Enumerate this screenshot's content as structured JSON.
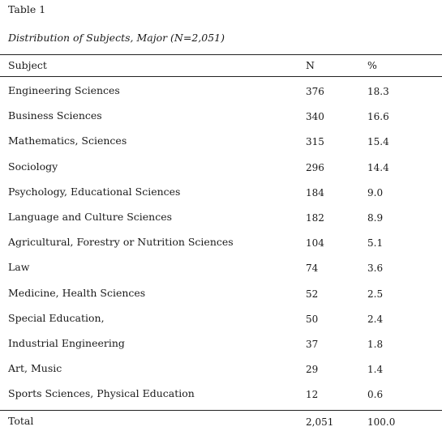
{
  "table": {
    "number": "Table 1",
    "caption": "Distribution of Subjects, Major  (N=2,051)",
    "headers": {
      "subject": "Subject",
      "n": "N",
      "percent": "%"
    },
    "rows": [
      {
        "subject": "Engineering Sciences",
        "n": "376",
        "percent": "18.3"
      },
      {
        "subject": "Business Sciences",
        "n": "340",
        "percent": "16.6"
      },
      {
        "subject": "Mathematics, Sciences",
        "n": "315",
        "percent": "15.4"
      },
      {
        "subject": "Sociology",
        "n": "296",
        "percent": "14.4"
      },
      {
        "subject": "Psychology, Educational Sciences",
        "n": "184",
        "percent": "9.0"
      },
      {
        "subject": "Language and Culture Sciences",
        "n": "182",
        "percent": "8.9"
      },
      {
        "subject": "Agricultural, Forestry or Nutrition Sciences",
        "n": "104",
        "percent": "5.1"
      },
      {
        "subject": "Law",
        "n": "74",
        "percent": "3.6"
      },
      {
        "subject": "Medicine, Health Sciences",
        "n": "52",
        "percent": "2.5"
      },
      {
        "subject": "Special Education,",
        "n": "50",
        "percent": "2.4"
      },
      {
        "subject": "Industrial Engineering",
        "n": "37",
        "percent": "1.8"
      },
      {
        "subject": "Art, Music",
        "n": "29",
        "percent": "1.4"
      },
      {
        "subject": "Sports Sciences, Physical Education",
        "n": "12",
        "percent": "0.6"
      }
    ],
    "total": {
      "subject": "Total",
      "n": "2,051",
      "percent": "100.0"
    }
  }
}
